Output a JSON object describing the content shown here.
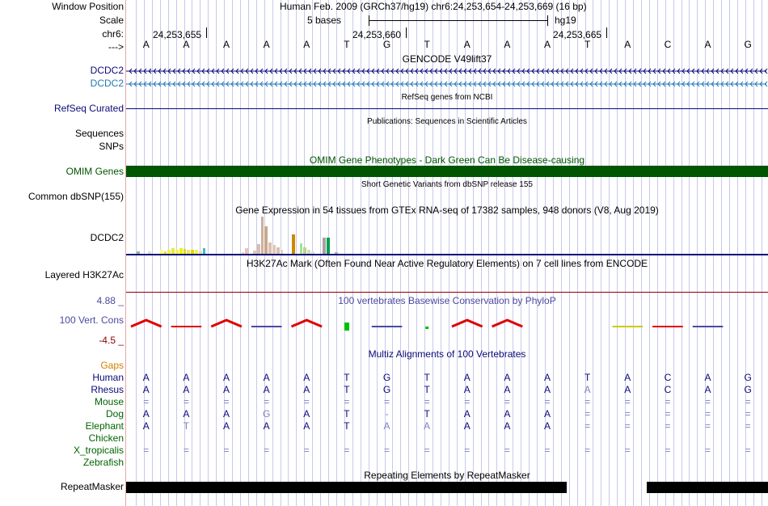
{
  "header": {
    "window_position_label": "Window Position",
    "title": "Human Feb. 2009 (GRCh37/hg19)   chr6:24,253,654-24,253,669 (16 bp)",
    "scale_label": "Scale",
    "scale_text": "5 bases",
    "scale_assembly": "hg19",
    "chr_label": "chr6:",
    "arrow_label": "--->",
    "positions": [
      "24,253,655",
      "24,253,660",
      "24,253,665"
    ]
  },
  "bases": [
    "A",
    "A",
    "A",
    "A",
    "A",
    "T",
    "G",
    "T",
    "A",
    "A",
    "A",
    "T",
    "A",
    "C",
    "A",
    "G"
  ],
  "tracks": {
    "gencode_title": "GENCODE V49lift37",
    "gencode_genes": [
      "DCDC2",
      "DCDC2"
    ],
    "refseq_label": "RefSeq Curated",
    "refseq_title": "RefSeq genes from NCBI",
    "sequences_label": "Sequences",
    "sequences_title": "Publications: Sequences in Scientific Articles",
    "snps_label": "SNPs",
    "omim_title": "OMIM Gene Phenotypes - Dark Green Can Be Disease-causing",
    "omim_label": "OMIM Genes",
    "dbsnp_title": "Short Genetic Variants from dbSNP release 155",
    "dbsnp_label": "Common dbSNP(155)",
    "gtex_title": "Gene Expression in 54 tissues from GTEx RNA-seq of 17382 samples, 948 donors (V8, Aug 2019)",
    "gtex_label": "DCDC2",
    "h3k27_title": "H3K27Ac Mark (Often Found Near Active Regulatory Elements) on 7 cell lines from ENCODE",
    "h3k27_label": "Layered H3K27Ac",
    "phylop_title": "100 vertebrates Basewise Conservation by PhyloP",
    "phylop_label": "100 Vert. Cons",
    "phylop_max": "4.88 _",
    "phylop_min": "-4.5 _",
    "multiz_title": "Multiz Alignments of 100 Vertebrates",
    "gaps_label": "Gaps",
    "repeat_title": "Repeating Elements by RepeatMasker",
    "repeat_label": "RepeatMasker"
  },
  "colors": {
    "navy": "#0a0a78",
    "gencode2": "#1f78b4",
    "omim": "#005500",
    "phylop": "#4a4aa0",
    "phylop_min": "#8b0000",
    "gaps": "#d08000",
    "species_green": "#006400"
  },
  "gtex_values": [
    3,
    0,
    0,
    3,
    0,
    0,
    5,
    3,
    5,
    7,
    5,
    7,
    6,
    5,
    5,
    5,
    3,
    7,
    0,
    0,
    0,
    0,
    0,
    0,
    0,
    0,
    0,
    2,
    7,
    0,
    4,
    12,
    46,
    34,
    14,
    11,
    8,
    5,
    0,
    0,
    24,
    0,
    13,
    8,
    5,
    3,
    0,
    0,
    20,
    20,
    0,
    2,
    0,
    0
  ],
  "gtex_colors": [
    "#8fbc8f",
    "#fff",
    "#fff",
    "#e0e0e0",
    "#fff",
    "#fff",
    "#ffff80",
    "#e0e040",
    "#f0f050",
    "#e8e840",
    "#f0f060",
    "#f0f000",
    "#d8d830",
    "#e8e860",
    "#e0d800",
    "#f0f060",
    "#e0e0a0",
    "#40c0c0",
    "#fff",
    "#fff",
    "#fff",
    "#fff",
    "#fff",
    "#fff",
    "#fff",
    "#fff",
    "#fff",
    "#f0d0c0",
    "#f0c0b0",
    "#fff",
    "#e0c8b8",
    "#d8c0b0",
    "#cdb09a",
    "#c8a890",
    "#d8c0b0",
    "#e0c8b8",
    "#d8c0b0",
    "#e0d0c8",
    "#fff",
    "#fff",
    "#cc8800",
    "#fff",
    "#a0e0a0",
    "#c0d090",
    "#d0e0c0",
    "#e0e0e0",
    "#fff",
    "#fff",
    "#a8a0a0",
    "#00a050",
    "#fff",
    "#b0b0b0",
    "#fff",
    "#fff"
  ],
  "species": [
    {
      "name": "Human",
      "color": "#0a0a78",
      "seq": [
        "A",
        "A",
        "A",
        "A",
        "A",
        "T",
        "G",
        "T",
        "A",
        "A",
        "A",
        "T",
        "A",
        "C",
        "A",
        "G"
      ]
    },
    {
      "name": "Rhesus",
      "color": "#0a0a78",
      "seq": [
        "A",
        "A",
        "A",
        "A",
        "A",
        "T",
        "G",
        "T",
        "A",
        "A",
        "A",
        "A",
        "A",
        "C",
        "A",
        "G"
      ]
    },
    {
      "name": "Mouse",
      "color": "#006400",
      "seq": [
        "=",
        "=",
        "=",
        "=",
        "=",
        "=",
        "=",
        "=",
        "=",
        "=",
        "=",
        "=",
        "=",
        "=",
        "=",
        "="
      ]
    },
    {
      "name": "Dog",
      "color": "#006400",
      "seq": [
        "A",
        "A",
        "A",
        "G",
        "A",
        "T",
        "-",
        "T",
        "A",
        "A",
        "A",
        "=",
        "=",
        "=",
        "=",
        "="
      ]
    },
    {
      "name": "Elephant",
      "color": "#006400",
      "seq": [
        "A",
        "T",
        "A",
        "A",
        "A",
        "T",
        "A",
        "A",
        "A",
        "A",
        "A",
        "=",
        "=",
        "=",
        "=",
        "="
      ]
    },
    {
      "name": "Chicken",
      "color": "#006400",
      "seq": [
        "",
        "",
        "",
        "",
        "",
        "",
        "",
        "",
        "",
        "",
        "",
        "",
        "",
        "",
        "",
        ""
      ]
    },
    {
      "name": "X_tropicalis",
      "color": "#006400",
      "seq": [
        "=",
        "=",
        "=",
        "=",
        "=",
        "=",
        "=",
        "=",
        "=",
        "=",
        "=",
        "=",
        "=",
        "=",
        "=",
        "="
      ]
    },
    {
      "name": "Zebrafish",
      "color": "#006400",
      "seq": [
        "",
        "",
        "",
        "",
        "",
        "",
        "",
        "",
        "",
        "",
        "",
        "",
        "",
        "",
        "",
        ""
      ]
    }
  ]
}
